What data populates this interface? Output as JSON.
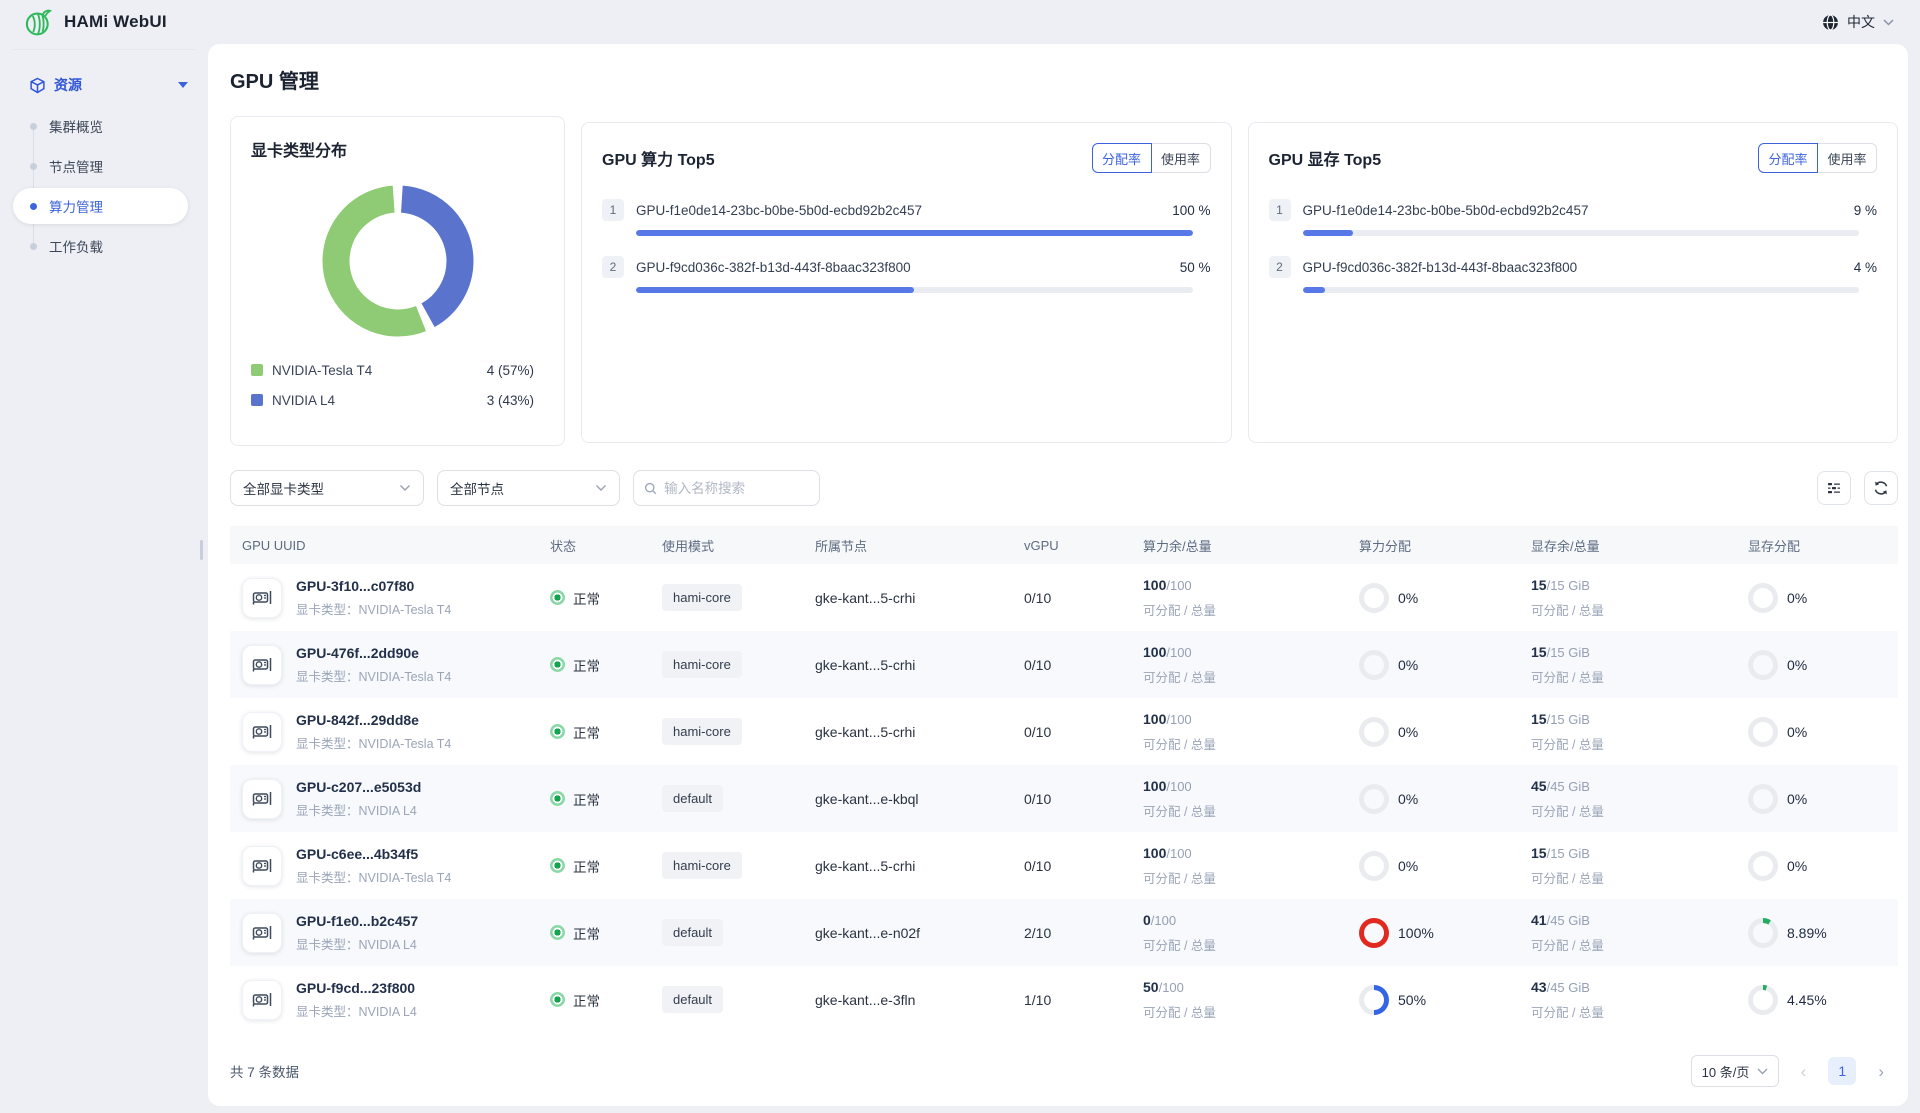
{
  "topbar": {
    "brand": "HAMi WebUI",
    "language": "中文"
  },
  "sidebar": {
    "group_label": "资源",
    "items": [
      {
        "label": "集群概览"
      },
      {
        "label": "节点管理"
      },
      {
        "label": "算力管理"
      },
      {
        "label": "工作负载"
      }
    ]
  },
  "page": {
    "title": "GPU 管理"
  },
  "distribution_card": {
    "title": "显卡类型分布",
    "chart_data": {
      "type": "pie",
      "labels": [
        "NVIDIA-Tesla T4",
        "NVIDIA L4"
      ],
      "values": [
        4,
        3
      ],
      "percents": [
        57,
        43
      ],
      "colors": [
        "#8fcb74",
        "#5a74ce"
      ],
      "segments_clockwise_from_top": [
        {
          "color": "#5a74ce",
          "pct": 43
        },
        {
          "color": "#8fcb74",
          "pct": 57
        }
      ],
      "legend": [
        {
          "label": "NVIDIA-Tesla T4",
          "value": "4 (57%)",
          "color": "#8fcb74"
        },
        {
          "label": "NVIDIA L4",
          "value": "3 (43%)",
          "color": "#5a74ce"
        }
      ]
    }
  },
  "compute_card": {
    "title": "GPU 算力 Top5",
    "toggle": {
      "active": "分配率",
      "inactive": "使用率"
    },
    "items": [
      {
        "rank": "1",
        "name": "GPU-f1e0de14-23bc-b0be-5b0d-ecbd92b2c457",
        "percent_label": "100 %",
        "percent": 100
      },
      {
        "rank": "2",
        "name": "GPU-f9cd036c-382f-b13d-443f-8baac323f800",
        "percent_label": "50 %",
        "percent": 50
      }
    ]
  },
  "memory_card": {
    "title": "GPU 显存 Top5",
    "toggle": {
      "active": "分配率",
      "inactive": "使用率"
    },
    "items": [
      {
        "rank": "1",
        "name": "GPU-f1e0de14-23bc-b0be-5b0d-ecbd92b2c457",
        "percent_label": "9 %",
        "percent": 9
      },
      {
        "rank": "2",
        "name": "GPU-f9cd036c-382f-b13d-443f-8baac323f800",
        "percent_label": "4 %",
        "percent": 4
      }
    ]
  },
  "filters": {
    "gpu_type": "全部显卡类型",
    "node": "全部节点",
    "search_placeholder": "输入名称搜索"
  },
  "table": {
    "columns": [
      "GPU UUID",
      "状态",
      "使用模式",
      "所属节点",
      "vGPU",
      "算力余/总量",
      "算力分配",
      "显存余/总量",
      "显存分配"
    ],
    "caption": "可分配 / 总量",
    "rows": [
      {
        "uuid": "GPU-3f10...c07f80",
        "gpu_type": "显卡类型：NVIDIA-Tesla T4",
        "status": "正常",
        "mode": "hami-core",
        "node": "gke-kant...5-crhi",
        "vgpu": "0/10",
        "core_free": "100",
        "core_total": "/100",
        "core_pct": "0%",
        "core_ring": {
          "pct": 0,
          "color": "#e9ebef"
        },
        "mem_free": "15",
        "mem_total": "/15 GiB",
        "mem_pct": "0%",
        "mem_ring": {
          "pct": 0,
          "color": "#e9ebef"
        }
      },
      {
        "uuid": "GPU-476f...2dd90e",
        "gpu_type": "显卡类型：NVIDIA-Tesla T4",
        "status": "正常",
        "mode": "hami-core",
        "node": "gke-kant...5-crhi",
        "vgpu": "0/10",
        "core_free": "100",
        "core_total": "/100",
        "core_pct": "0%",
        "core_ring": {
          "pct": 0,
          "color": "#e9ebef"
        },
        "mem_free": "15",
        "mem_total": "/15 GiB",
        "mem_pct": "0%",
        "mem_ring": {
          "pct": 0,
          "color": "#e9ebef"
        }
      },
      {
        "uuid": "GPU-842f...29dd8e",
        "gpu_type": "显卡类型：NVIDIA-Tesla T4",
        "status": "正常",
        "mode": "hami-core",
        "node": "gke-kant...5-crhi",
        "vgpu": "0/10",
        "core_free": "100",
        "core_total": "/100",
        "core_pct": "0%",
        "core_ring": {
          "pct": 0,
          "color": "#e9ebef"
        },
        "mem_free": "15",
        "mem_total": "/15 GiB",
        "mem_pct": "0%",
        "mem_ring": {
          "pct": 0,
          "color": "#e9ebef"
        }
      },
      {
        "uuid": "GPU-c207...e5053d",
        "gpu_type": "显卡类型：NVIDIA L4",
        "status": "正常",
        "mode": "default",
        "node": "gke-kant...e-kbql",
        "vgpu": "0/10",
        "core_free": "100",
        "core_total": "/100",
        "core_pct": "0%",
        "core_ring": {
          "pct": 0,
          "color": "#e9ebef"
        },
        "mem_free": "45",
        "mem_total": "/45 GiB",
        "mem_pct": "0%",
        "mem_ring": {
          "pct": 0,
          "color": "#e9ebef"
        }
      },
      {
        "uuid": "GPU-c6ee...4b34f5",
        "gpu_type": "显卡类型：NVIDIA-Tesla T4",
        "status": "正常",
        "mode": "hami-core",
        "node": "gke-kant...5-crhi",
        "vgpu": "0/10",
        "core_free": "100",
        "core_total": "/100",
        "core_pct": "0%",
        "core_ring": {
          "pct": 0,
          "color": "#e9ebef"
        },
        "mem_free": "15",
        "mem_total": "/15 GiB",
        "mem_pct": "0%",
        "mem_ring": {
          "pct": 0,
          "color": "#e9ebef"
        }
      },
      {
        "uuid": "GPU-f1e0...b2c457",
        "gpu_type": "显卡类型：NVIDIA L4",
        "status": "正常",
        "mode": "default",
        "node": "gke-kant...e-n02f",
        "vgpu": "2/10",
        "core_free": "0",
        "core_total": "/100",
        "core_pct": "100%",
        "core_ring": {
          "pct": 100,
          "color": "#e02a1f"
        },
        "mem_free": "41",
        "mem_total": "/45 GiB",
        "mem_pct": "8.89%",
        "mem_ring": {
          "pct": 8.89,
          "color": "#23ad63"
        }
      },
      {
        "uuid": "GPU-f9cd...23f800",
        "gpu_type": "显卡类型：NVIDIA L4",
        "status": "正常",
        "mode": "default",
        "node": "gke-kant...e-3fln",
        "vgpu": "1/10",
        "core_free": "50",
        "core_total": "/100",
        "core_pct": "50%",
        "core_ring": {
          "pct": 50,
          "color": "#3565e3"
        },
        "mem_free": "43",
        "mem_total": "/45 GiB",
        "mem_pct": "4.45%",
        "mem_ring": {
          "pct": 4.45,
          "color": "#23ad63"
        }
      }
    ]
  },
  "footer": {
    "total": "共 7 条数据",
    "page_size": "10 条/页",
    "page": "1"
  }
}
